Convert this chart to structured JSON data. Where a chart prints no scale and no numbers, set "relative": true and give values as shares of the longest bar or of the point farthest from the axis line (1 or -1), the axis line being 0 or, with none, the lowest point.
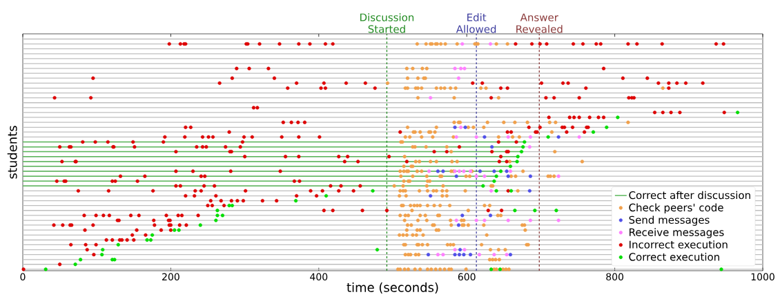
{
  "chart_data": {
    "type": "scatter",
    "xlabel": "time (seconds)",
    "ylabel": "students",
    "xlim": [
      0,
      1000
    ],
    "xticks": [
      0,
      200,
      400,
      600,
      800,
      1000
    ],
    "relative": true,
    "tick_labels": "x",
    "grid": "y",
    "legend": "bottom right",
    "marker": "circle",
    "ref_lines": [
      {
        "axis": "x",
        "value": 492,
        "label": "Discussion Started",
        "color": "#228b22",
        "line_style": "dashed"
      },
      {
        "axis": "x",
        "value": 613,
        "label": "Edit Allowed",
        "color": "#3f3f9f",
        "line_style": "dashed"
      },
      {
        "axis": "x",
        "value": 698,
        "label": "Answer Revealed",
        "color": "#8b3a3a",
        "line_style": "dashed"
      }
    ],
    "series": [
      {
        "name": "Correct after discussion",
        "type": "line",
        "marker": "none",
        "color": "#5cb85c",
        "x": [
          0,
          678,
          null,
          0,
          676,
          null,
          0,
          674,
          null,
          0,
          669,
          null,
          0,
          668,
          null,
          0,
          659,
          null,
          0,
          646,
          null,
          0,
          640,
          null,
          0,
          637,
          null,
          0,
          622
        ],
        "values": [
          0.565,
          0.565,
          null,
          0.543,
          0.543,
          null,
          0.522,
          0.522,
          null,
          0.5,
          0.5,
          null,
          0.478,
          0.478,
          null,
          0.457,
          0.457,
          null,
          0.435,
          0.435,
          null,
          0.413,
          0.413,
          null,
          0.391,
          0.391,
          null,
          0.37,
          0.37
        ]
      },
      {
        "name": "Check peers' code",
        "color": "#f0a04b",
        "x": [
          533,
          545,
          551,
          553,
          558,
          560,
          565,
          571,
          587,
          611,
          613,
          615,
          640,
          655,
          519,
          527,
          540,
          546,
          520,
          534,
          542,
          544,
          493,
          517,
          520,
          531,
          534,
          539,
          559,
          565,
          570,
          578,
          585,
          619,
          626,
          865,
          534,
          583,
          643,
          583,
          589,
          591,
          628,
          650,
          665,
          682,
          712,
          720,
          818,
          520,
          559,
          602,
          609,
          623,
          528,
          530,
          537,
          549,
          551,
          557,
          715,
          517,
          523,
          539,
          554,
          582,
          643,
          662,
          671,
          511,
          513,
          527,
          530,
          545,
          573,
          579,
          719,
          516,
          531,
          536,
          551,
          559,
          580,
          587,
          658,
          756,
          515,
          525,
          527,
          510,
          515,
          519,
          521,
          533,
          539,
          579,
          582,
          607,
          676,
          511,
          527,
          546,
          564,
          566,
          599,
          604,
          660,
          666,
          710,
          713,
          718,
          515,
          521,
          523,
          547,
          550,
          502,
          514,
          546,
          568,
          633,
          635,
          510,
          514,
          517,
          536,
          547,
          555,
          559,
          567,
          573,
          598,
          669,
          509,
          518,
          567,
          573,
          512,
          514,
          524,
          529,
          533,
          537,
          547,
          556,
          564,
          577,
          624,
          631,
          526,
          602,
          510,
          517,
          521,
          537,
          544,
          561,
          563,
          642,
          646,
          516,
          534,
          546,
          578,
          593,
          596,
          520,
          525,
          554,
          556,
          579,
          594,
          596,
          602,
          623,
          675,
          678,
          519,
          533,
          537,
          559,
          562,
          679,
          509,
          514,
          519,
          527,
          532,
          541,
          627,
          515,
          517,
          533,
          535,
          540,
          547,
          574,
          578,
          582,
          620,
          681,
          683,
          632,
          643,
          652,
          517,
          521,
          524,
          531,
          535,
          631,
          635,
          639,
          644,
          507,
          510,
          516,
          521,
          530,
          537,
          547,
          552,
          558,
          564,
          570,
          576,
          579,
          599,
          637,
          640,
          649,
          653,
          657
        ],
        "values": [
          1,
          1,
          1,
          1,
          1,
          1,
          1,
          1,
          1,
          1,
          1,
          1,
          1,
          1,
          0.891,
          0.891,
          0.891,
          0.891,
          0.848,
          0.848,
          0.848,
          0.848,
          0.826,
          0.804,
          0.804,
          0.804,
          0.804,
          0.804,
          0.804,
          0.804,
          0.804,
          0.804,
          0.804,
          0.804,
          0.804,
          0.804,
          0.761,
          0.761,
          0.761,
          0.652,
          0.652,
          0.652,
          0.652,
          0.652,
          0.652,
          0.652,
          0.652,
          0.652,
          0.652,
          0.63,
          0.63,
          0.63,
          0.63,
          0.63,
          0.609,
          0.609,
          0.609,
          0.609,
          0.609,
          0.609,
          0.609,
          0.587,
          0.587,
          0.587,
          0.587,
          0.587,
          0.587,
          0.587,
          0.587,
          0.565,
          0.565,
          0.543,
          0.543,
          0.543,
          0.543,
          0.522,
          0.522,
          0.5,
          0.478,
          0.478,
          0.478,
          0.478,
          0.478,
          0.478,
          0.478,
          0.478,
          0.457,
          0.457,
          0.457,
          0.435,
          0.435,
          0.435,
          0.435,
          0.435,
          0.435,
          0.435,
          0.435,
          0.435,
          0.435,
          0.413,
          0.413,
          0.413,
          0.413,
          0.413,
          0.413,
          0.413,
          0.413,
          0.413,
          0.413,
          0.413,
          0.413,
          0.391,
          0.391,
          0.391,
          0.391,
          0.391,
          0.37,
          0.37,
          0.37,
          0.37,
          0.37,
          0.37,
          0.348,
          0.348,
          0.348,
          0.348,
          0.348,
          0.348,
          0.348,
          0.348,
          0.348,
          0.348,
          0.348,
          0.326,
          0.326,
          0.326,
          0.326,
          0.283,
          0.283,
          0.283,
          0.283,
          0.283,
          0.283,
          0.283,
          0.283,
          0.283,
          0.283,
          0.283,
          0.283,
          0.261,
          0.261,
          0.239,
          0.239,
          0.239,
          0.239,
          0.239,
          0.239,
          0.239,
          0.239,
          0.239,
          0.217,
          0.217,
          0.217,
          0.217,
          0.217,
          0.217,
          0.196,
          0.196,
          0.196,
          0.196,
          0.196,
          0.196,
          0.196,
          0.196,
          0.196,
          0.196,
          0.196,
          0.174,
          0.174,
          0.174,
          0.174,
          0.174,
          0.174,
          0.152,
          0.152,
          0.152,
          0.152,
          0.152,
          0.152,
          0.152,
          0.109,
          0.109,
          0.109,
          0.109,
          0.109,
          0.109,
          0.109,
          0.109,
          0.109,
          0.109,
          0.109,
          0.109,
          0.087,
          0.087,
          0.087,
          0.065,
          0.065,
          0.065,
          0.065,
          0.065,
          0.043,
          0.043,
          0.043,
          0.043,
          0,
          0,
          0,
          0,
          0,
          0,
          0,
          0,
          0,
          0,
          0,
          0,
          0,
          0,
          0,
          0,
          0,
          0,
          0
        ]
      },
      {
        "name": "Send messages",
        "color": "#5050e8",
        "x": [
          584,
          598,
          624,
          724,
          634,
          561,
          568,
          618,
          637,
          654,
          586,
          656,
          686,
          685,
          551,
          594,
          632,
          589,
          591,
          548,
          584,
          590,
          596,
          605,
          659
        ],
        "values": [
          0.63,
          0.63,
          0.587,
          0.587,
          0.543,
          0.435,
          0.435,
          0.435,
          0.435,
          0.435,
          0.413,
          0.413,
          0.413,
          0.348,
          0.326,
          0.239,
          0.239,
          0.196,
          0.087,
          0.065,
          0.065,
          0.065,
          0.065,
          0.065,
          0.065
        ]
      },
      {
        "name": "Receive messages",
        "color": "#ff80ff",
        "x": [
          594,
          632,
          584,
          592,
          597,
          589,
          551,
          592,
          586,
          613,
          656,
          686,
          752,
          685,
          549,
          584,
          590,
          596,
          605,
          659,
          613,
          624,
          724,
          633,
          586,
          613,
          624,
          656,
          686,
          724,
          584,
          597,
          561,
          568,
          617,
          637,
          654
        ],
        "values": [
          1,
          1,
          0.891,
          0.891,
          0.891,
          0.848,
          0.761,
          0.63,
          0.587,
          0.587,
          0.587,
          0.587,
          0.587,
          0.543,
          0.435,
          0.435,
          0.435,
          0.435,
          0.435,
          0.435,
          0.413,
          0.413,
          0.413,
          0.348,
          0.217,
          0.217,
          0.217,
          0.217,
          0.217,
          0.217,
          0.087,
          0.087,
          0.065,
          0.065,
          0.065,
          0.065,
          0.065
        ]
      },
      {
        "name": "Incorrect execution",
        "color": "#dd0000",
        "x": [
          198,
          213,
          218,
          220,
          302,
          304,
          320,
          347,
          373,
          388,
          409,
          419,
          666,
          688,
          699,
          708,
          744,
          757,
          775,
          781,
          818,
          830,
          864,
          937,
          947,
          289,
          306,
          332,
          785,
          95,
          283,
          340,
          811,
          844,
          266,
          370,
          407,
          437,
          463,
          608,
          621,
          701,
          730,
          737,
          859,
          873,
          884,
          896,
          919,
          358,
          403,
          409,
          476,
          646,
          655,
          761,
          873,
          43,
          92,
          633,
          707,
          718,
          752,
          819,
          823,
          826,
          312,
          317,
          854,
          865,
          876,
          888,
          948,
          711,
          739,
          745,
          752,
          766,
          778,
          785,
          352,
          363,
          372,
          381,
          220,
          227,
          684,
          699,
          729,
          732,
          743,
          762,
          764,
          279,
          510,
          655,
          660,
          693,
          695,
          735,
          759,
          192,
          219,
          243,
          251,
          257,
          299,
          310,
          350,
          373,
          401,
          81,
          98,
          115,
          149,
          190,
          297,
          643,
          667,
          50,
          63,
          65,
          122,
          123,
          151,
          235,
          243,
          248,
          274,
          294,
          590,
          207,
          280,
          282,
          556,
          573,
          634,
          654,
          656,
          300,
          355,
          373,
          427,
          439,
          495,
          646,
          53,
          71,
          72,
          435,
          453,
          519,
          644,
          654,
          207,
          230,
          281,
          348,
          132,
          165,
          241,
          246,
          46,
          56,
          58,
          121,
          125,
          155,
          367,
          374,
          207,
          213,
          245,
          259,
          416,
          430,
          456,
          75,
          116,
          176,
          233,
          241,
          301,
          389,
          405,
          427,
          447,
          656,
          220,
          232,
          261,
          370,
          397,
          254,
          268,
          282,
          290,
          298,
          324,
          343,
          250,
          256,
          272,
          407,
          419,
          459,
          492,
          629,
          647,
          83,
          99,
          109,
          117,
          146,
          157,
          194,
          210,
          215,
          237,
          128,
          130,
          177,
          197,
          199,
          42,
          54,
          64,
          66,
          95,
          178,
          198,
          200,
          212,
          221,
          84,
          154,
          187,
          200,
          148,
          166,
          113,
          121,
          131,
          134,
          141,
          150,
          65,
          85,
          99,
          87,
          96,
          50,
          1
        ],
        "values": [
          1,
          1,
          1,
          1,
          1,
          1,
          1,
          1,
          1,
          1,
          1,
          1,
          1,
          1,
          1,
          1,
          1,
          1,
          1,
          1,
          1,
          1,
          1,
          1,
          1,
          0.891,
          0.891,
          0.891,
          0.891,
          0.848,
          0.848,
          0.848,
          0.848,
          0.848,
          0.826,
          0.826,
          0.826,
          0.826,
          0.826,
          0.826,
          0.826,
          0.826,
          0.826,
          0.826,
          0.826,
          0.826,
          0.826,
          0.826,
          0.826,
          0.804,
          0.804,
          0.804,
          0.804,
          0.804,
          0.804,
          0.804,
          0.804,
          0.761,
          0.761,
          0.761,
          0.761,
          0.761,
          0.761,
          0.761,
          0.761,
          0.761,
          0.717,
          0.717,
          0.696,
          0.696,
          0.696,
          0.696,
          0.696,
          0.674,
          0.674,
          0.674,
          0.674,
          0.674,
          0.674,
          0.674,
          0.652,
          0.652,
          0.652,
          0.652,
          0.63,
          0.63,
          0.63,
          0.63,
          0.63,
          0.63,
          0.63,
          0.63,
          0.63,
          0.609,
          0.609,
          0.609,
          0.609,
          0.609,
          0.609,
          0.609,
          0.609,
          0.587,
          0.587,
          0.587,
          0.587,
          0.587,
          0.587,
          0.587,
          0.587,
          0.587,
          0.587,
          0.565,
          0.565,
          0.565,
          0.565,
          0.565,
          0.565,
          0.565,
          0.565,
          0.543,
          0.543,
          0.543,
          0.543,
          0.543,
          0.543,
          0.543,
          0.543,
          0.543,
          0.543,
          0.543,
          0.543,
          0.522,
          0.522,
          0.522,
          0.522,
          0.522,
          0.522,
          0.522,
          0.522,
          0.5,
          0.5,
          0.5,
          0.5,
          0.5,
          0.5,
          0.5,
          0.478,
          0.478,
          0.478,
          0.478,
          0.478,
          0.478,
          0.478,
          0.478,
          0.435,
          0.435,
          0.435,
          0.435,
          0.413,
          0.413,
          0.413,
          0.413,
          0.391,
          0.391,
          0.391,
          0.391,
          0.391,
          0.391,
          0.391,
          0.391,
          0.37,
          0.37,
          0.37,
          0.37,
          0.37,
          0.37,
          0.37,
          0.348,
          0.348,
          0.348,
          0.348,
          0.348,
          0.348,
          0.348,
          0.348,
          0.348,
          0.348,
          0.348,
          0.326,
          0.326,
          0.326,
          0.326,
          0.326,
          0.304,
          0.304,
          0.304,
          0.304,
          0.304,
          0.304,
          0.304,
          0.283,
          0.283,
          0.283,
          0.261,
          0.261,
          0.261,
          0.261,
          0.261,
          0.261,
          0.239,
          0.239,
          0.239,
          0.239,
          0.239,
          0.239,
          0.239,
          0.239,
          0.239,
          0.239,
          0.217,
          0.217,
          0.217,
          0.217,
          0.217,
          0.196,
          0.196,
          0.196,
          0.196,
          0.196,
          0.196,
          0.196,
          0.196,
          0.196,
          0.196,
          0.174,
          0.174,
          0.174,
          0.174,
          0.152,
          0.152,
          0.13,
          0.13,
          0.13,
          0.13,
          0.13,
          0.13,
          0.109,
          0.109,
          0.109,
          0.087,
          0.065,
          0.022,
          0
        ]
      },
      {
        "name": "Correct execution",
        "color": "#00dd00",
        "x": [
          966,
          804,
          789,
          771,
          710,
          678,
          676,
          674,
          669,
          668,
          659,
          646,
          640,
          637,
          622,
          473,
          640,
          660,
          410,
          369,
          279,
          283,
          263,
          665,
          692,
          721,
          263,
          270,
          261,
          240,
          205,
          211,
          175,
          168,
          173,
          129,
          108,
          479,
          107,
          78,
          121,
          124,
          71,
          31,
          633,
          645,
          944
        ],
        "values": [
          0.696,
          0.674,
          0.63,
          0.609,
          0.587,
          0.565,
          0.543,
          0.522,
          0.5,
          0.478,
          0.457,
          0.435,
          0.413,
          0.391,
          0.37,
          0.348,
          0.348,
          0.348,
          0.326,
          0.304,
          0.283,
          0.283,
          0.261,
          0.261,
          0.261,
          0.261,
          0.239,
          0.239,
          0.217,
          0.196,
          0.174,
          0.174,
          0.152,
          0.13,
          0.13,
          0.109,
          0.087,
          0.087,
          0.065,
          0.043,
          0.043,
          0.043,
          0.022,
          0,
          0,
          0,
          0
        ]
      }
    ]
  }
}
